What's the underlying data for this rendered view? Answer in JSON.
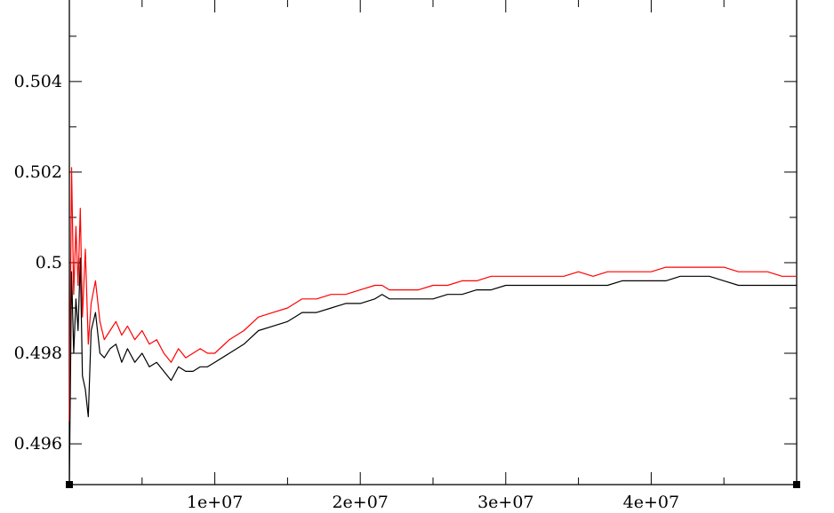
{
  "chart_data": {
    "type": "line",
    "title": "",
    "xlabel": "",
    "ylabel": "",
    "xlim": [
      0,
      50000000
    ],
    "ylim": [
      0.4951,
      0.5058
    ],
    "x_ticks": [
      {
        "value": 10000000,
        "label": "1e+07"
      },
      {
        "value": 20000000,
        "label": "2e+07"
      },
      {
        "value": 30000000,
        "label": "3e+07"
      },
      {
        "value": 40000000,
        "label": "4e+07"
      }
    ],
    "x_minor_step": 5000000,
    "y_ticks": [
      {
        "value": 0.496,
        "label": "0.496"
      },
      {
        "value": 0.498,
        "label": "0.498"
      },
      {
        "value": 0.5,
        "label": "0.5"
      },
      {
        "value": 0.502,
        "label": "0.502"
      },
      {
        "value": 0.504,
        "label": "0.504"
      }
    ],
    "y_minor_step": 0.001,
    "grid": false,
    "series": [
      {
        "color": "#ff0000",
        "x": [
          0,
          150000,
          300000,
          450000,
          600000,
          750000,
          900000,
          1100000,
          1300000,
          1500000,
          1800000,
          2100000,
          2400000,
          2800000,
          3200000,
          3600000,
          4000000,
          4500000,
          5000000,
          5500000,
          6000000,
          6500000,
          7000000,
          7500000,
          8000000,
          8500000,
          9000000,
          9500000,
          10000000,
          11000000,
          12000000,
          13000000,
          14000000,
          15000000,
          15500000,
          16000000,
          17000000,
          18000000,
          19000000,
          20000000,
          21000000,
          21500000,
          22000000,
          23000000,
          24000000,
          25000000,
          26000000,
          27000000,
          28000000,
          29000000,
          30000000,
          31000000,
          32000000,
          33000000,
          34000000,
          35000000,
          36000000,
          37000000,
          38000000,
          39000000,
          40000000,
          41000000,
          42000000,
          43000000,
          44000000,
          45000000,
          46000000,
          47000000,
          48000000,
          49000000,
          50000000
        ],
        "values": [
          0.4965,
          0.5021,
          0.4993,
          0.5008,
          0.4995,
          0.5012,
          0.4988,
          0.5003,
          0.4982,
          0.4991,
          0.4996,
          0.4987,
          0.4983,
          0.4985,
          0.4987,
          0.4984,
          0.4986,
          0.4983,
          0.4985,
          0.4982,
          0.4983,
          0.498,
          0.4978,
          0.4981,
          0.4979,
          0.498,
          0.4981,
          0.498,
          0.498,
          0.4983,
          0.4985,
          0.4988,
          0.4989,
          0.499,
          0.4991,
          0.4992,
          0.4992,
          0.4993,
          0.4993,
          0.4994,
          0.4995,
          0.4995,
          0.4994,
          0.4994,
          0.4994,
          0.4995,
          0.4995,
          0.4996,
          0.4996,
          0.4997,
          0.4997,
          0.4997,
          0.4997,
          0.4997,
          0.4997,
          0.4998,
          0.4997,
          0.4998,
          0.4998,
          0.4998,
          0.4998,
          0.4999,
          0.4999,
          0.4999,
          0.4999,
          0.4999,
          0.4998,
          0.4998,
          0.4998,
          0.4997,
          0.4997
        ]
      },
      {
        "color": "#000000",
        "x": [
          0,
          150000,
          300000,
          450000,
          600000,
          750000,
          900000,
          1100000,
          1300000,
          1500000,
          1800000,
          2100000,
          2400000,
          2800000,
          3200000,
          3600000,
          4000000,
          4500000,
          5000000,
          5500000,
          6000000,
          6500000,
          7000000,
          7500000,
          8000000,
          8500000,
          9000000,
          9500000,
          10000000,
          11000000,
          12000000,
          13000000,
          14000000,
          15000000,
          15500000,
          16000000,
          17000000,
          18000000,
          19000000,
          20000000,
          21000000,
          21500000,
          22000000,
          23000000,
          24000000,
          25000000,
          26000000,
          27000000,
          28000000,
          29000000,
          30000000,
          31000000,
          32000000,
          33000000,
          34000000,
          35000000,
          36000000,
          37000000,
          38000000,
          39000000,
          40000000,
          41000000,
          42000000,
          43000000,
          44000000,
          45000000,
          46000000,
          47000000,
          48000000,
          49000000,
          50000000
        ],
        "values": [
          0.4951,
          0.4998,
          0.498,
          0.4992,
          0.4985,
          0.5001,
          0.4975,
          0.4972,
          0.4966,
          0.4985,
          0.4989,
          0.498,
          0.4979,
          0.4981,
          0.4982,
          0.4978,
          0.4981,
          0.4978,
          0.498,
          0.4977,
          0.4978,
          0.4976,
          0.4974,
          0.4977,
          0.4976,
          0.4976,
          0.4977,
          0.4977,
          0.4978,
          0.498,
          0.4982,
          0.4985,
          0.4986,
          0.4987,
          0.4988,
          0.4989,
          0.4989,
          0.499,
          0.4991,
          0.4991,
          0.4992,
          0.4993,
          0.4992,
          0.4992,
          0.4992,
          0.4992,
          0.4993,
          0.4993,
          0.4994,
          0.4994,
          0.4995,
          0.4995,
          0.4995,
          0.4995,
          0.4995,
          0.4995,
          0.4995,
          0.4995,
          0.4996,
          0.4996,
          0.4996,
          0.4996,
          0.4997,
          0.4997,
          0.4997,
          0.4996,
          0.4995,
          0.4995,
          0.4995,
          0.4995,
          0.4995
        ]
      }
    ]
  }
}
